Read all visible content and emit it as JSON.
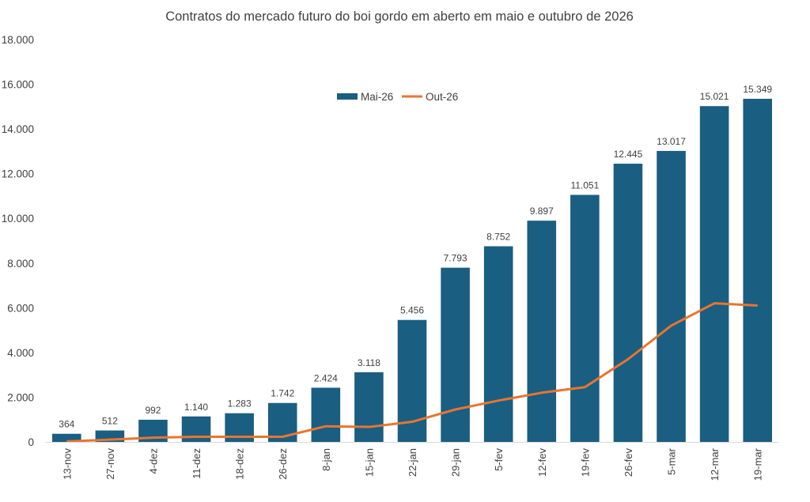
{
  "chart_data": {
    "type": "bar",
    "title": "Contratos do mercado futuro do boi gordo em aberto em maio  e outubro de 2026",
    "categories": [
      "13-nov",
      "27-nov",
      "4-dez",
      "11-dez",
      "18-dez",
      "26-dez",
      "8-jan",
      "15-jan",
      "22-jan",
      "29-jan",
      "5-fev",
      "12-fev",
      "19-fev",
      "26-fev",
      "5-mar",
      "12-mar",
      "19-mar"
    ],
    "series": [
      {
        "name": "Mai-26",
        "type": "bar",
        "color": "#1a5e82",
        "values": [
          364,
          512,
          992,
          1140,
          1283,
          1742,
          2424,
          3118,
          5456,
          7793,
          8752,
          9897,
          11051,
          12445,
          13017,
          15021,
          15349
        ],
        "labels": [
          "364",
          "512",
          "992",
          "1.140",
          "1.283",
          "1.742",
          "2.424",
          "3.118",
          "5.456",
          "7.793",
          "8.752",
          "9.897",
          "11.051",
          "12.445",
          "13.017",
          "15.021",
          "15.349"
        ]
      },
      {
        "name": "Out-26",
        "type": "line",
        "color": "#e87530",
        "values": [
          20,
          100,
          190,
          230,
          230,
          230,
          700,
          670,
          900,
          1450,
          1850,
          2200,
          2450,
          3700,
          5200,
          6200,
          6100
        ]
      }
    ],
    "ylim": [
      0,
      18000
    ],
    "yticks": [
      0,
      2000,
      4000,
      6000,
      8000,
      10000,
      12000,
      14000,
      16000,
      18000
    ],
    "ytick_labels": [
      "0",
      "2.000",
      "4.000",
      "6.000",
      "8.000",
      "10.000",
      "12.000",
      "14.000",
      "16.000",
      "18.000"
    ],
    "grid": false,
    "legend": "top-center"
  }
}
